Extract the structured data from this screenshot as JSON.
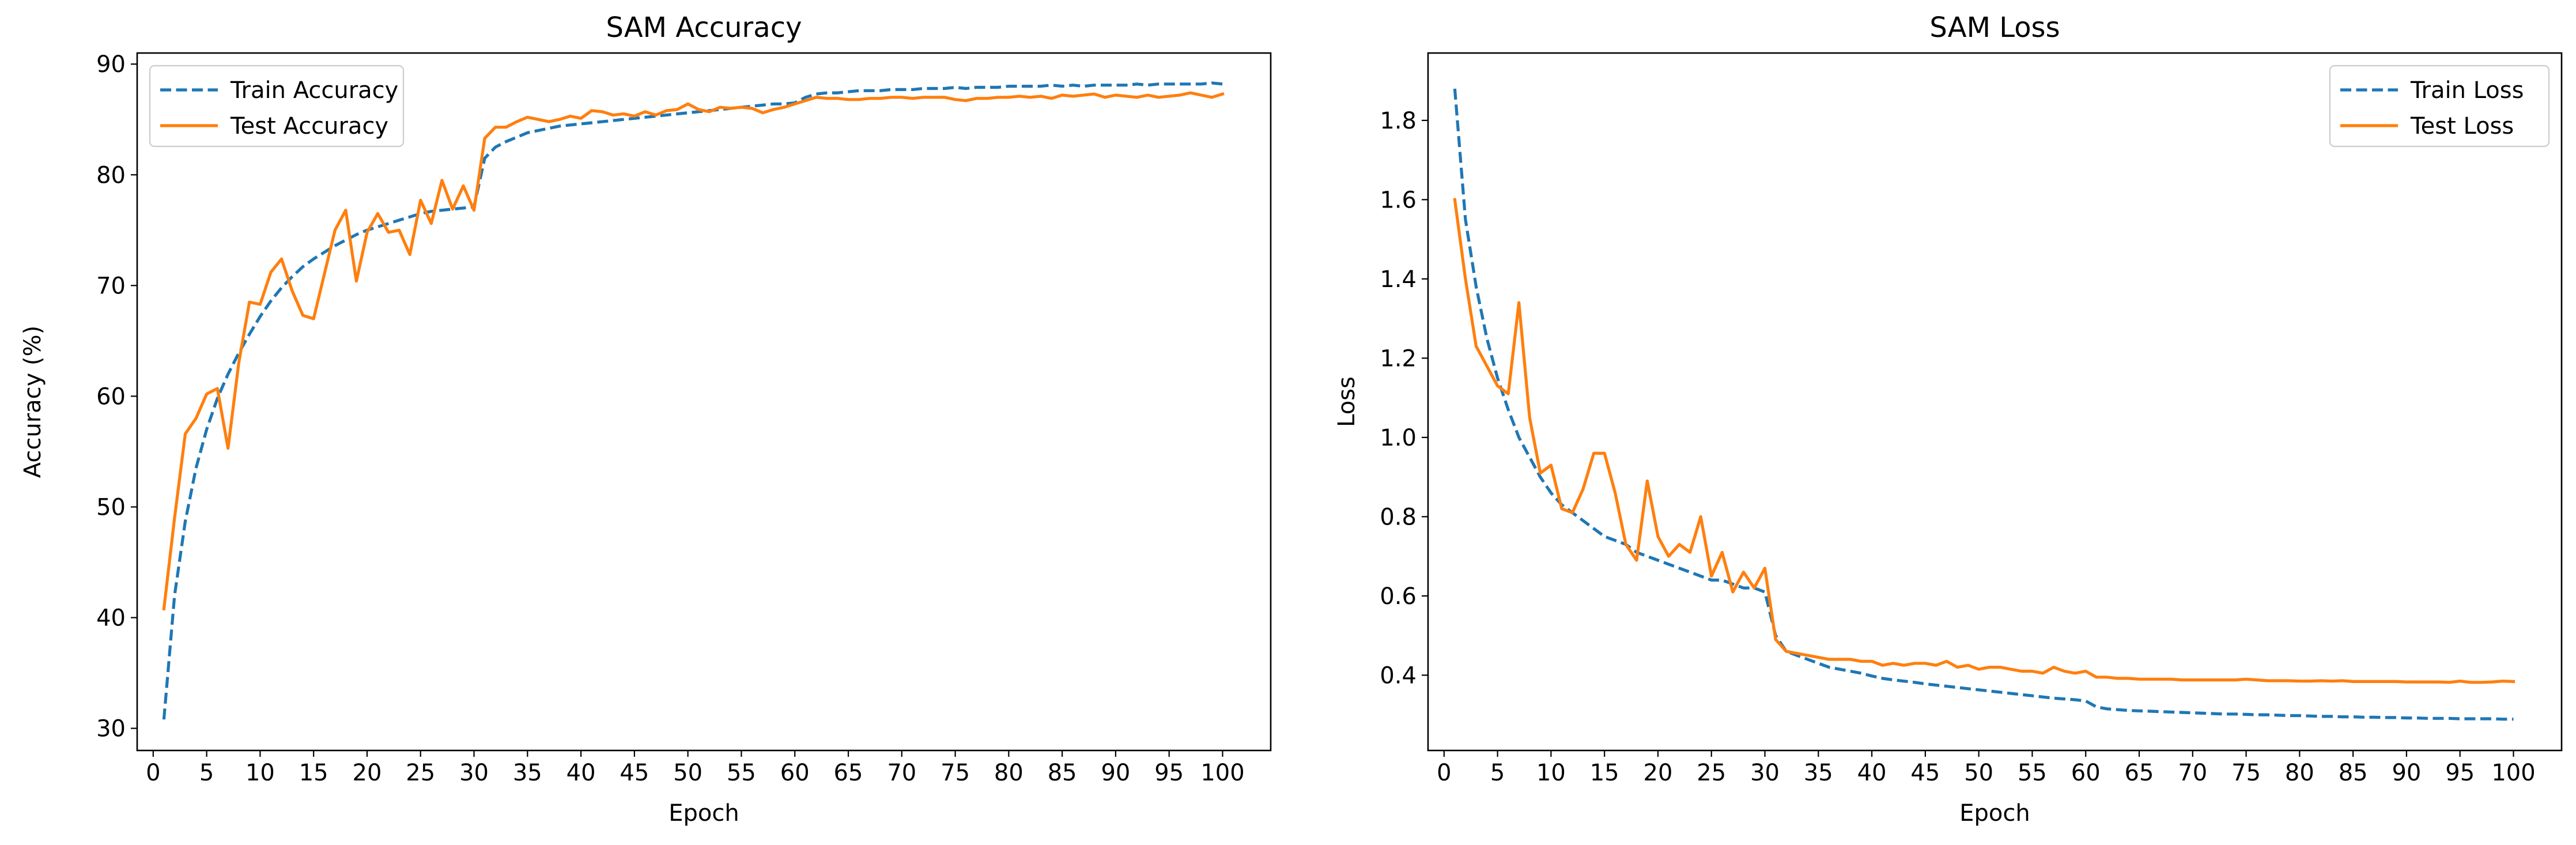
{
  "colors": {
    "train": "#1f77b4",
    "test": "#ff7f0e",
    "axis": "#000000",
    "legend_border": "#cccccc"
  },
  "chart_data": [
    {
      "type": "line",
      "title": "SAM Accuracy",
      "xlabel": "Epoch",
      "ylabel": "Accuracy (%)",
      "xlim": [
        -1.5,
        104.5
      ],
      "ylim": [
        28,
        91
      ],
      "xticks": [
        0,
        5,
        10,
        15,
        20,
        25,
        30,
        35,
        40,
        45,
        50,
        55,
        60,
        65,
        70,
        75,
        80,
        85,
        90,
        95,
        100
      ],
      "yticks": [
        30,
        40,
        50,
        60,
        70,
        80,
        90
      ],
      "grid": false,
      "legend_position": "top-left",
      "x": [
        1,
        2,
        3,
        4,
        5,
        6,
        7,
        8,
        9,
        10,
        11,
        12,
        13,
        14,
        15,
        16,
        17,
        18,
        19,
        20,
        21,
        22,
        23,
        24,
        25,
        26,
        27,
        28,
        29,
        30,
        31,
        32,
        33,
        34,
        35,
        36,
        37,
        38,
        39,
        40,
        41,
        42,
        43,
        44,
        45,
        46,
        47,
        48,
        49,
        50,
        51,
        52,
        53,
        54,
        55,
        56,
        57,
        58,
        59,
        60,
        61,
        62,
        63,
        64,
        65,
        66,
        67,
        68,
        69,
        70,
        71,
        72,
        73,
        74,
        75,
        76,
        77,
        78,
        79,
        80,
        81,
        82,
        83,
        84,
        85,
        86,
        87,
        88,
        89,
        90,
        91,
        92,
        93,
        94,
        95,
        96,
        97,
        98,
        99,
        100
      ],
      "series": [
        {
          "name": "Train Accuracy",
          "style": "dashed",
          "color": "#1f77b4",
          "values": [
            30.8,
            42.0,
            48.7,
            53.5,
            57.0,
            59.8,
            62.0,
            63.9,
            65.6,
            67.2,
            68.6,
            69.8,
            70.8,
            71.7,
            72.4,
            73.0,
            73.6,
            74.1,
            74.6,
            75.0,
            75.3,
            75.6,
            75.9,
            76.2,
            76.5,
            76.7,
            76.8,
            76.9,
            77.0,
            77.1,
            81.5,
            82.5,
            83.0,
            83.4,
            83.8,
            84.0,
            84.2,
            84.4,
            84.5,
            84.6,
            84.7,
            84.8,
            84.9,
            85.0,
            85.1,
            85.2,
            85.3,
            85.4,
            85.5,
            85.6,
            85.7,
            85.8,
            85.9,
            86.0,
            86.1,
            86.2,
            86.3,
            86.4,
            86.4,
            86.5,
            87.0,
            87.3,
            87.4,
            87.4,
            87.5,
            87.6,
            87.6,
            87.6,
            87.7,
            87.7,
            87.7,
            87.8,
            87.8,
            87.8,
            87.9,
            87.8,
            87.9,
            87.9,
            87.9,
            88.0,
            88.0,
            88.0,
            88.0,
            88.1,
            88.0,
            88.1,
            88.0,
            88.1,
            88.1,
            88.1,
            88.1,
            88.2,
            88.1,
            88.2,
            88.2,
            88.2,
            88.2,
            88.2,
            88.3,
            88.2
          ]
        },
        {
          "name": "Test Accuracy",
          "style": "solid",
          "color": "#ff7f0e",
          "values": [
            40.8,
            49.0,
            56.6,
            58.0,
            60.2,
            60.7,
            55.3,
            63.0,
            68.5,
            68.3,
            71.2,
            72.4,
            69.5,
            67.3,
            67.0,
            71.0,
            75.0,
            76.8,
            70.4,
            74.8,
            76.5,
            74.8,
            75.0,
            72.8,
            77.7,
            75.6,
            79.5,
            76.9,
            79.0,
            76.8,
            83.3,
            84.3,
            84.3,
            84.8,
            85.2,
            85.0,
            84.8,
            85.0,
            85.3,
            85.1,
            85.8,
            85.7,
            85.4,
            85.5,
            85.3,
            85.7,
            85.4,
            85.8,
            85.9,
            86.4,
            85.9,
            85.7,
            86.1,
            86.0,
            86.1,
            86.0,
            85.6,
            85.9,
            86.1,
            86.4,
            86.7,
            87.0,
            86.9,
            86.9,
            86.8,
            86.8,
            86.9,
            86.9,
            87.0,
            87.0,
            86.9,
            87.0,
            87.0,
            87.0,
            86.8,
            86.7,
            86.9,
            86.9,
            87.0,
            87.0,
            87.1,
            87.0,
            87.1,
            86.9,
            87.2,
            87.1,
            87.2,
            87.3,
            87.0,
            87.2,
            87.1,
            87.0,
            87.2,
            87.0,
            87.1,
            87.2,
            87.4,
            87.2,
            87.0,
            87.3
          ]
        }
      ]
    },
    {
      "type": "line",
      "title": "SAM Loss",
      "xlabel": "Epoch",
      "ylabel": "Loss",
      "xlim": [
        -1.5,
        104.5
      ],
      "ylim": [
        0.21,
        1.97
      ],
      "xticks": [
        0,
        5,
        10,
        15,
        20,
        25,
        30,
        35,
        40,
        45,
        50,
        55,
        60,
        65,
        70,
        75,
        80,
        85,
        90,
        95,
        100
      ],
      "yticks": [
        0.4,
        0.6,
        0.8,
        1.0,
        1.2,
        1.4,
        1.6,
        1.8
      ],
      "ytick_labels": [
        "0.4",
        "0.6",
        "0.8",
        "1.0",
        "1.2",
        "1.4",
        "1.6",
        "1.8"
      ],
      "grid": false,
      "legend_position": "top-right",
      "x": [
        1,
        2,
        3,
        4,
        5,
        6,
        7,
        8,
        9,
        10,
        11,
        12,
        13,
        14,
        15,
        16,
        17,
        18,
        19,
        20,
        21,
        22,
        23,
        24,
        25,
        26,
        27,
        28,
        29,
        30,
        31,
        32,
        33,
        34,
        35,
        36,
        37,
        38,
        39,
        40,
        41,
        42,
        43,
        44,
        45,
        46,
        47,
        48,
        49,
        50,
        51,
        52,
        53,
        54,
        55,
        56,
        57,
        58,
        59,
        60,
        61,
        62,
        63,
        64,
        65,
        66,
        67,
        68,
        69,
        70,
        71,
        72,
        73,
        74,
        75,
        76,
        77,
        78,
        79,
        80,
        81,
        82,
        83,
        84,
        85,
        86,
        87,
        88,
        89,
        90,
        91,
        92,
        93,
        94,
        95,
        96,
        97,
        98,
        99,
        100
      ],
      "series": [
        {
          "name": "Train Loss",
          "style": "dashed",
          "color": "#1f77b4",
          "values": [
            1.88,
            1.55,
            1.38,
            1.25,
            1.15,
            1.07,
            1.0,
            0.95,
            0.9,
            0.86,
            0.83,
            0.81,
            0.79,
            0.77,
            0.75,
            0.74,
            0.73,
            0.71,
            0.7,
            0.69,
            0.68,
            0.67,
            0.66,
            0.65,
            0.64,
            0.64,
            0.63,
            0.62,
            0.62,
            0.61,
            0.5,
            0.46,
            0.45,
            0.44,
            0.43,
            0.42,
            0.415,
            0.41,
            0.405,
            0.398,
            0.392,
            0.388,
            0.385,
            0.382,
            0.378,
            0.375,
            0.372,
            0.369,
            0.366,
            0.363,
            0.36,
            0.357,
            0.354,
            0.351,
            0.348,
            0.345,
            0.342,
            0.34,
            0.338,
            0.335,
            0.32,
            0.315,
            0.313,
            0.311,
            0.31,
            0.309,
            0.308,
            0.307,
            0.306,
            0.305,
            0.304,
            0.303,
            0.302,
            0.302,
            0.301,
            0.3,
            0.3,
            0.299,
            0.298,
            0.298,
            0.297,
            0.296,
            0.296,
            0.295,
            0.295,
            0.294,
            0.294,
            0.293,
            0.293,
            0.292,
            0.292,
            0.291,
            0.291,
            0.291,
            0.29,
            0.29,
            0.29,
            0.29,
            0.289,
            0.289
          ]
        },
        {
          "name": "Test Loss",
          "style": "solid",
          "color": "#ff7f0e",
          "values": [
            1.6,
            1.4,
            1.23,
            1.18,
            1.13,
            1.11,
            1.34,
            1.05,
            0.91,
            0.93,
            0.82,
            0.81,
            0.87,
            0.96,
            0.96,
            0.86,
            0.73,
            0.69,
            0.89,
            0.75,
            0.7,
            0.73,
            0.71,
            0.8,
            0.65,
            0.71,
            0.61,
            0.66,
            0.62,
            0.67,
            0.49,
            0.46,
            0.455,
            0.45,
            0.445,
            0.44,
            0.44,
            0.44,
            0.435,
            0.435,
            0.425,
            0.43,
            0.425,
            0.43,
            0.43,
            0.425,
            0.435,
            0.42,
            0.425,
            0.415,
            0.42,
            0.42,
            0.415,
            0.41,
            0.41,
            0.405,
            0.42,
            0.41,
            0.405,
            0.41,
            0.395,
            0.395,
            0.392,
            0.392,
            0.39,
            0.39,
            0.39,
            0.39,
            0.388,
            0.388,
            0.388,
            0.388,
            0.388,
            0.388,
            0.39,
            0.388,
            0.386,
            0.386,
            0.386,
            0.385,
            0.385,
            0.386,
            0.385,
            0.386,
            0.384,
            0.384,
            0.384,
            0.384,
            0.384,
            0.383,
            0.383,
            0.383,
            0.383,
            0.382,
            0.385,
            0.382,
            0.382,
            0.383,
            0.385,
            0.384
          ]
        }
      ]
    }
  ]
}
